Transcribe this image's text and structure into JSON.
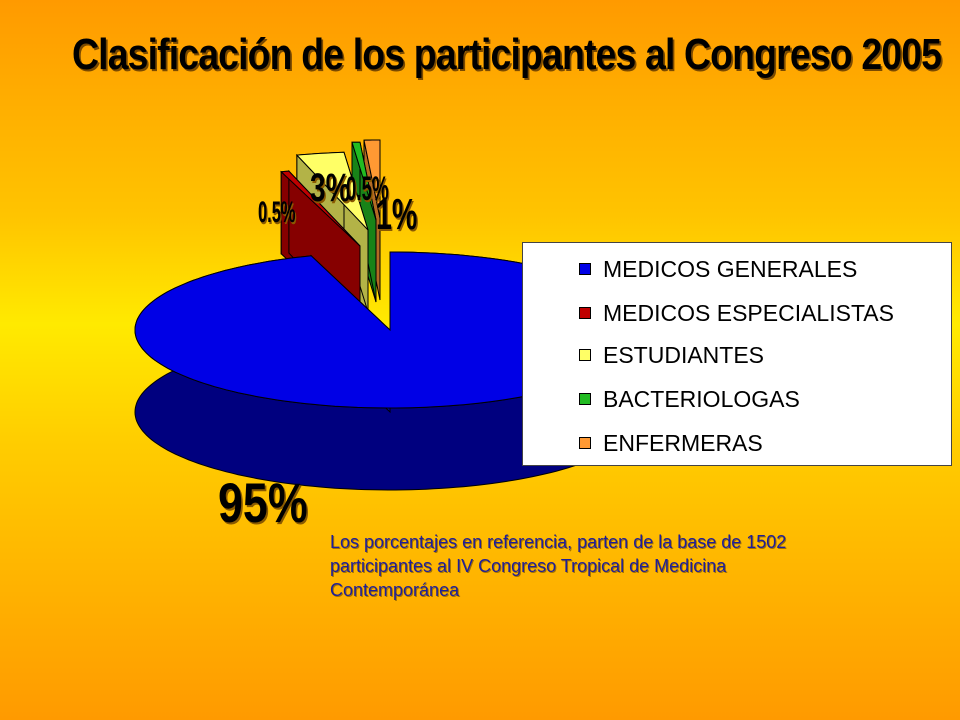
{
  "title": "Clasificación de los participantes al Congreso 2005",
  "note": "Los porcentajes en referencia, parten de la base de 1502 participantes al IV Congreso Tropical de Medicina Contemporánea",
  "chart_data": {
    "type": "pie",
    "title": "Clasificación de los participantes al Congreso 2005",
    "legend_position": "right",
    "slices": [
      {
        "label": "MEDICOS GENERALES",
        "value": 95,
        "value_label": "95%",
        "color": "#0000e6"
      },
      {
        "label": "MEDICOS ESPECIALISTAS",
        "value": 0.5,
        "value_label": "0.5%",
        "color": "#c00000"
      },
      {
        "label": "ESTUDIANTES",
        "value": 3,
        "value_label": "3%",
        "color": "#ffff66"
      },
      {
        "label": "BACTERIOLOGAS",
        "value": 0.5,
        "value_label": "0.5%",
        "color": "#22bb22"
      },
      {
        "label": "ENFERMERAS",
        "value": 1,
        "value_label": "1%",
        "color": "#ff9933"
      }
    ]
  }
}
